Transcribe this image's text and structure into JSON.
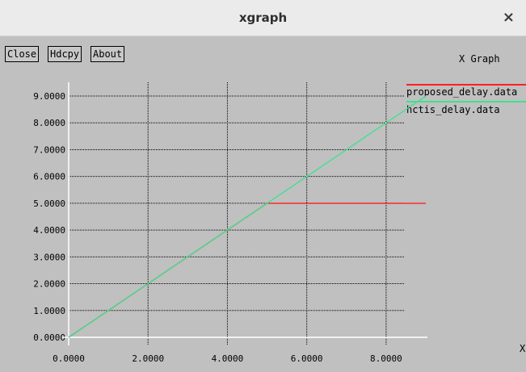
{
  "window": {
    "title": "xgraph",
    "close_glyph": "×"
  },
  "buttons": {
    "close": "Close",
    "hdcpy": "Hdcpy",
    "about": "About"
  },
  "graph_title": "X Graph",
  "x_axis_unit_label": "X",
  "legend": [
    {
      "name": "proposed_delay.data",
      "color": "#ff2020"
    },
    {
      "name": "hctis_delay.data",
      "color": "#40e090"
    }
  ],
  "chart_data": {
    "type": "line",
    "title": "X Graph",
    "xlim": [
      0,
      9
    ],
    "ylim": [
      0,
      9
    ],
    "x_ticks": [
      "0.0000",
      "2.0000",
      "4.0000",
      "6.0000",
      "8.0000"
    ],
    "y_ticks": [
      "0.0000",
      "1.0000",
      "2.0000",
      "3.0000",
      "4.0000",
      "5.0000",
      "6.0000",
      "7.0000",
      "8.0000",
      "9.0000"
    ],
    "grid": true,
    "series": [
      {
        "name": "proposed_delay.data",
        "color": "#ff2020",
        "x": [
          0,
          1,
          2,
          3,
          4,
          5,
          6,
          7,
          8,
          9
        ],
        "y": [
          0,
          1,
          2,
          3,
          4,
          5,
          5,
          5,
          5,
          5
        ]
      },
      {
        "name": "hctis_delay.data",
        "color": "#40e090",
        "x": [
          0,
          1,
          2,
          3,
          4,
          5,
          6,
          7,
          8,
          9
        ],
        "y": [
          0,
          1,
          2,
          3,
          4,
          5,
          6,
          7,
          8,
          9
        ]
      }
    ]
  }
}
